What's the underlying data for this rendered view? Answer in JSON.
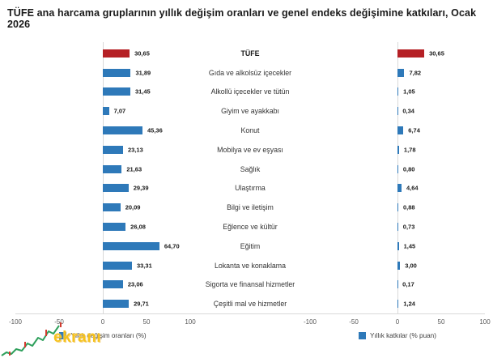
{
  "title": "TÜFE ana harcama gruplarının yıllık değişim oranları ve genel endeks değişimine katkıları, Ocak 2026",
  "watermark": {
    "text": "ekranı"
  },
  "colors": {
    "bar_blue": "#2E79B9",
    "bar_red": "#B52025",
    "axis_line": "#D9D9D9",
    "tick_text": "#595959"
  },
  "chart_data": [
    {
      "type": "bar",
      "orientation": "horizontal",
      "legend": "Yıllık değişim oranları (%)",
      "xlim": [
        -100,
        100
      ],
      "ticks": [
        "-100",
        "-50",
        "0",
        "50",
        "100"
      ],
      "grid": "zero-line-only",
      "highlight_index": 0,
      "categories": [
        "TÜFE",
        "Gıda ve alkolsüz içecekler",
        "Alkollü içecekler ve tütün",
        "Giyim ve ayakkabı",
        "Konut",
        "Mobilya ve ev eşyası",
        "Sağlık",
        "Ulaştırma",
        "Bilgi ve iletişim",
        "Eğlence ve kültür",
        "Eğitim",
        "Lokanta ve konaklama",
        "Sigorta ve finansal hizmetler",
        "Çeşitli mal ve hizmetler"
      ],
      "values": [
        30.65,
        31.89,
        31.45,
        7.07,
        45.36,
        23.13,
        21.63,
        29.39,
        20.09,
        26.08,
        64.7,
        33.31,
        23.06,
        29.71
      ],
      "value_labels": [
        "30,65",
        "31,89",
        "31,45",
        "7,07",
        "45,36",
        "23,13",
        "21,63",
        "29,39",
        "20,09",
        "26,08",
        "64,70",
        "33,31",
        "23,06",
        "29,71"
      ]
    },
    {
      "type": "bar",
      "orientation": "horizontal",
      "legend": "Yıllık katkılar (% puan)",
      "xlim": [
        -100,
        100
      ],
      "ticks": [
        "-100",
        "-50",
        "0",
        "50",
        "100"
      ],
      "grid": "zero-line-only",
      "highlight_index": 0,
      "categories": [
        "TÜFE",
        "Gıda ve alkolsüz içecekler",
        "Alkollü içecekler ve tütün",
        "Giyim ve ayakkabı",
        "Konut",
        "Mobilya ve ev eşyası",
        "Sağlık",
        "Ulaştırma",
        "Bilgi ve iletişim",
        "Eğlence ve kültür",
        "Eğitim",
        "Lokanta ve konaklama",
        "Sigorta ve finansal hizmetler",
        "Çeşitli mal ve hizmetler"
      ],
      "values": [
        30.65,
        7.82,
        1.05,
        0.34,
        6.74,
        1.78,
        0.8,
        4.64,
        0.88,
        0.73,
        1.45,
        3.0,
        0.17,
        1.24
      ],
      "value_labels": [
        "30,65",
        "7,82",
        "1,05",
        "0,34",
        "6,74",
        "1,78",
        "0,80",
        "4,64",
        "0,88",
        "0,73",
        "1,45",
        "3,00",
        "0,17",
        "1,24"
      ]
    }
  ]
}
